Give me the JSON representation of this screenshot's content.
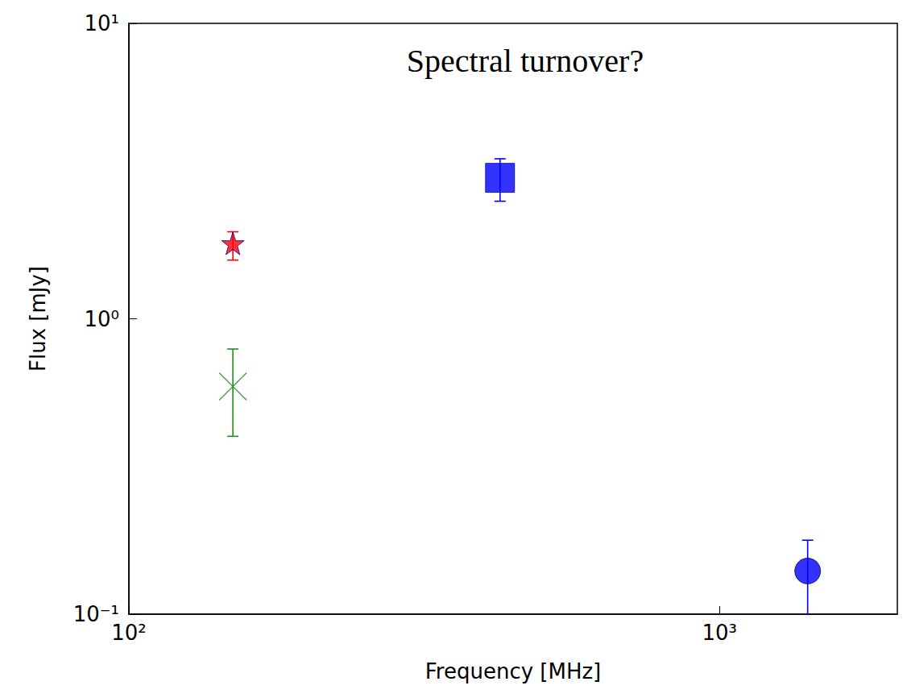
{
  "chart_data": {
    "type": "scatter",
    "title": "Spectral turnover?",
    "x_label": "Frequency [MHz]",
    "y_label": "Flux [mJy]",
    "log": true,
    "grid": false,
    "xlim": [
      100,
      2000
    ],
    "xticks": [
      {
        "value": 100,
        "label": "10²"
      },
      {
        "value": 1000,
        "label": "10³"
      }
    ],
    "ylim": [
      0.1,
      10
    ],
    "yticks": [
      {
        "value": 0.1,
        "label": "10⁻¹"
      },
      {
        "value": 1,
        "label": "10⁰"
      },
      {
        "value": 10,
        "label": "10¹"
      }
    ],
    "series": [
      {
        "x": [
          150
        ],
        "values": [
          1.8
        ],
        "error_low": [
          1.58
        ],
        "error_high": [
          1.97
        ],
        "color": "#ff0000",
        "marker": "star"
      },
      {
        "x": [
          150
        ],
        "values": [
          0.59
        ],
        "error_low": [
          0.4
        ],
        "error_high": [
          0.79
        ],
        "color": "#228b22",
        "marker": "x"
      },
      {
        "x": [
          425
        ],
        "values": [
          3.0
        ],
        "error_low": [
          2.5
        ],
        "error_high": [
          3.48
        ],
        "color": "#0000ff",
        "marker": "square"
      },
      {
        "x": [
          1410
        ],
        "values": [
          0.14
        ],
        "error_low": [
          0.1
        ],
        "error_high": [
          0.178
        ],
        "color": "#0000ff",
        "marker": "circle"
      }
    ]
  }
}
